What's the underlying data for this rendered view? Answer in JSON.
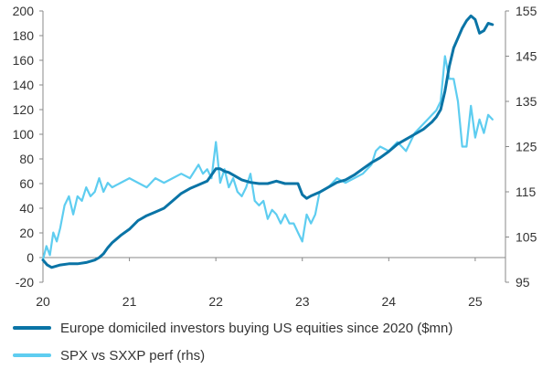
{
  "colors": {
    "series_1": "#0a74a6",
    "series_2": "#5ecdf0",
    "axis": "#888888"
  },
  "chart_data": {
    "type": "line",
    "title": "",
    "xlabel": "",
    "ylabel": "",
    "x_ticks": [
      "20",
      "21",
      "22",
      "23",
      "24",
      "25"
    ],
    "x_range": [
      20,
      25.35
    ],
    "y_left": {
      "range": [
        -20,
        200
      ],
      "ticks": [
        -20,
        0,
        20,
        40,
        60,
        80,
        100,
        120,
        140,
        160,
        180,
        200
      ]
    },
    "y_right": {
      "range": [
        95,
        155
      ],
      "ticks": [
        95,
        105,
        115,
        125,
        135,
        145,
        155
      ]
    },
    "grid": false,
    "legend_position": "bottom",
    "series": [
      {
        "name": "Europe domiciled investors buying US equities since 2020 ($mn)",
        "axis": "left",
        "x": [
          20.0,
          20.05,
          20.1,
          20.15,
          20.2,
          20.3,
          20.4,
          20.5,
          20.6,
          20.65,
          20.7,
          20.75,
          20.8,
          20.9,
          21.0,
          21.1,
          21.2,
          21.3,
          21.4,
          21.5,
          21.6,
          21.7,
          21.8,
          21.9,
          22.0,
          22.05,
          22.1,
          22.15,
          22.2,
          22.3,
          22.4,
          22.5,
          22.6,
          22.7,
          22.8,
          22.85,
          22.9,
          22.95,
          23.0,
          23.05,
          23.1,
          23.2,
          23.3,
          23.4,
          23.5,
          23.6,
          23.7,
          23.8,
          23.9,
          24.0,
          24.1,
          24.2,
          24.3,
          24.4,
          24.5,
          24.55,
          24.6,
          24.65,
          24.7,
          24.75,
          24.8,
          24.85,
          24.9,
          24.95,
          25.0,
          25.05,
          25.1,
          25.15,
          25.2
        ],
        "values": [
          -2,
          -6,
          -8,
          -7,
          -6,
          -5,
          -5,
          -4,
          -2,
          0,
          3,
          8,
          12,
          18,
          23,
          30,
          34,
          37,
          40,
          46,
          52,
          56,
          59,
          62,
          72,
          72,
          70,
          69,
          67,
          63,
          61,
          60,
          60,
          62,
          60,
          60,
          60,
          60,
          51,
          48,
          50,
          53,
          57,
          61,
          63,
          67,
          72,
          77,
          81,
          86,
          92,
          96,
          100,
          104,
          110,
          114,
          120,
          135,
          155,
          170,
          178,
          186,
          192,
          196,
          193,
          182,
          184,
          190,
          189
        ]
      },
      {
        "name": "SPX vs SXXP perf (rhs)",
        "axis": "right",
        "x": [
          20.0,
          20.04,
          20.08,
          20.12,
          20.16,
          20.2,
          20.25,
          20.3,
          20.35,
          20.4,
          20.45,
          20.5,
          20.55,
          20.6,
          20.65,
          20.7,
          20.75,
          20.8,
          20.9,
          21.0,
          21.1,
          21.2,
          21.3,
          21.4,
          21.5,
          21.6,
          21.7,
          21.8,
          21.85,
          21.9,
          21.95,
          22.0,
          22.05,
          22.1,
          22.15,
          22.2,
          22.25,
          22.3,
          22.35,
          22.4,
          22.45,
          22.5,
          22.55,
          22.6,
          22.65,
          22.7,
          22.75,
          22.8,
          22.85,
          22.9,
          22.95,
          23.0,
          23.05,
          23.1,
          23.15,
          23.2,
          23.3,
          23.4,
          23.5,
          23.6,
          23.7,
          23.8,
          23.85,
          23.9,
          24.0,
          24.1,
          24.2,
          24.3,
          24.4,
          24.5,
          24.55,
          24.6,
          24.65,
          24.7,
          24.75,
          24.8,
          24.85,
          24.9,
          24.95,
          25.0,
          25.05,
          25.1,
          25.15,
          25.2
        ],
        "values": [
          100,
          103,
          101,
          106,
          104,
          107,
          112,
          114,
          110,
          114,
          113,
          116,
          114,
          115,
          118,
          115,
          117,
          116,
          117,
          118,
          117,
          116,
          118,
          117,
          118,
          119,
          118,
          121,
          119,
          120,
          118,
          126,
          117,
          120,
          116,
          118,
          115,
          114,
          116,
          119,
          113,
          112,
          113,
          109,
          111,
          110,
          108,
          110,
          108,
          108,
          106,
          104,
          110,
          108,
          110,
          115,
          116,
          118,
          117,
          118,
          119,
          121,
          124,
          125,
          124,
          126,
          124,
          128,
          130,
          132,
          133,
          135,
          145,
          140,
          140,
          135,
          125,
          125,
          134,
          127,
          131,
          128,
          132,
          131
        ]
      }
    ]
  }
}
